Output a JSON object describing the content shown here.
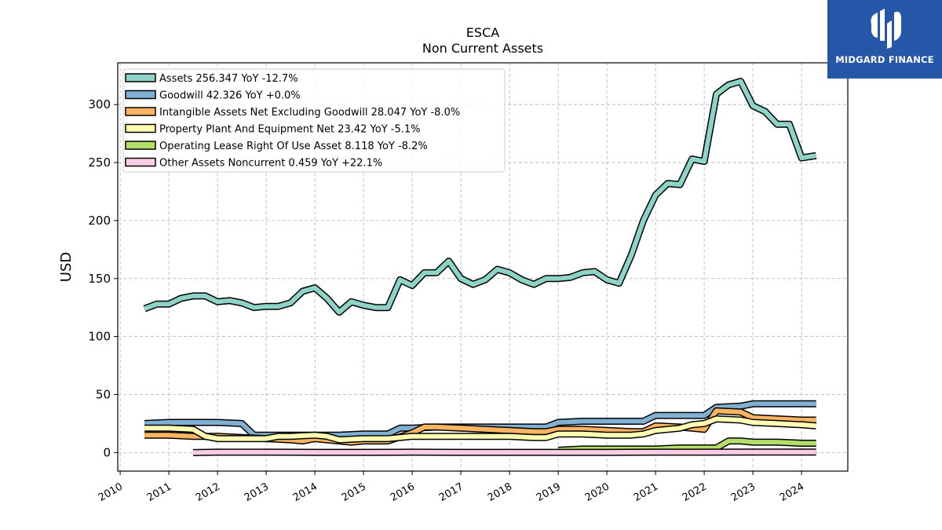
{
  "brand": {
    "name": "MIDGARD FINANCE"
  },
  "chart_data": {
    "type": "area",
    "title": "ESCA",
    "subtitle": "Non Current  Assets",
    "xlabel": "",
    "ylabel": "USD",
    "xlim": [
      2009.95,
      2024.95
    ],
    "ylim": [
      -16,
      336
    ],
    "yticks": [
      0,
      50,
      100,
      150,
      200,
      250,
      300
    ],
    "xticks": [
      2010,
      2011,
      2012,
      2013,
      2014,
      2015,
      2016,
      2017,
      2018,
      2019,
      2020,
      2021,
      2022,
      2023,
      2024
    ],
    "grid": true,
    "legend_position": "top-left",
    "series": [
      {
        "name": "Assets",
        "legend": "Assets  256.347 YoY -12.7%",
        "color": "#8dd3c7",
        "x": [
          2010.5,
          2010.75,
          2011.0,
          2011.25,
          2011.5,
          2011.75,
          2012.0,
          2012.25,
          2012.5,
          2012.75,
          2013.0,
          2013.25,
          2013.5,
          2013.75,
          2014.0,
          2014.25,
          2014.5,
          2014.75,
          2015.0,
          2015.25,
          2015.5,
          2015.75,
          2016.0,
          2016.25,
          2016.5,
          2016.75,
          2017.0,
          2017.25,
          2017.5,
          2017.75,
          2018.0,
          2018.25,
          2018.5,
          2018.75,
          2019.0,
          2019.25,
          2019.5,
          2019.75,
          2020.0,
          2020.25,
          2020.5,
          2020.75,
          2021.0,
          2021.25,
          2021.5,
          2021.75,
          2022.0,
          2022.25,
          2022.5,
          2022.75,
          2023.0,
          2023.25,
          2023.5,
          2023.75,
          2024.0,
          2024.3
        ],
        "y": [
          124,
          128,
          128,
          133,
          135,
          135,
          130,
          131,
          129,
          125,
          126,
          126,
          129,
          139,
          142,
          133,
          121,
          130,
          127,
          125,
          125,
          149,
          144,
          155,
          155,
          165,
          150,
          145,
          149,
          158,
          155,
          149,
          145,
          150,
          150,
          151,
          155,
          156,
          149,
          146,
          170,
          200,
          222,
          232,
          231,
          253,
          251,
          309,
          317,
          320,
          299,
          294,
          283,
          283,
          254,
          256
        ]
      },
      {
        "name": "Goodwill",
        "legend": "Goodwill  42.326 YoY +0.0%",
        "color": "#80b1d3",
        "x": [
          2010.5,
          2011.0,
          2011.5,
          2012.0,
          2012.5,
          2012.75,
          2013.0,
          2013.5,
          2014.0,
          2014.5,
          2015.0,
          2015.5,
          2015.75,
          2016.0,
          2016.5,
          2017.0,
          2017.5,
          2018.0,
          2018.5,
          2018.75,
          2019.0,
          2019.5,
          2020.0,
          2020.5,
          2020.75,
          2021.0,
          2021.5,
          2021.75,
          2022.0,
          2022.25,
          2022.75,
          2023.0,
          2023.5,
          2024.0,
          2024.3
        ],
        "y": [
          25,
          26,
          26,
          26,
          25,
          15,
          15,
          15,
          15,
          15,
          16,
          16,
          21,
          21,
          22,
          22,
          22,
          22,
          22,
          22,
          26,
          27,
          27,
          27,
          27,
          32,
          32,
          32,
          32,
          39,
          40,
          42,
          42,
          42,
          42
        ]
      },
      {
        "name": "Intangible Assets Net Excluding Goodwill",
        "legend": "Intangible Assets Net Excluding Goodwill  28.047 YoY -8.0%",
        "color": "#fdb462",
        "x": [
          2010.5,
          2011.0,
          2011.5,
          2012.0,
          2012.5,
          2013.0,
          2013.5,
          2013.75,
          2014.0,
          2014.5,
          2014.75,
          2015.0,
          2015.5,
          2016.0,
          2016.25,
          2016.5,
          2017.0,
          2017.5,
          2018.0,
          2018.5,
          2018.75,
          2019.0,
          2019.5,
          2020.0,
          2020.5,
          2020.75,
          2021.0,
          2021.5,
          2021.75,
          2022.0,
          2022.25,
          2022.75,
          2023.0,
          2023.5,
          2024.0,
          2024.3
        ],
        "y": [
          15,
          15,
          14,
          14,
          13,
          12,
          11,
          10,
          12,
          10,
          9,
          10,
          10,
          17,
          22,
          22,
          21,
          20,
          19,
          18,
          18,
          20,
          20,
          19,
          18,
          18,
          23,
          22,
          21,
          20,
          36,
          35,
          30,
          29,
          28,
          28
        ]
      },
      {
        "name": "Property Plant And Equipment Net",
        "legend": "Property Plant And Equipment Net  23.42 YoY -5.1%",
        "color": "#ffffb3",
        "x": [
          2010.5,
          2011.0,
          2011.5,
          2011.75,
          2012.0,
          2012.5,
          2013.0,
          2013.25,
          2013.5,
          2014.0,
          2014.25,
          2014.5,
          2015.0,
          2015.5,
          2016.0,
          2016.5,
          2017.0,
          2017.5,
          2018.0,
          2018.5,
          2018.75,
          2019.0,
          2019.5,
          2020.0,
          2020.5,
          2020.75,
          2021.0,
          2021.5,
          2021.75,
          2022.0,
          2022.25,
          2022.75,
          2023.0,
          2023.5,
          2024.0,
          2024.3
        ],
        "y": [
          21,
          21,
          20,
          14,
          12,
          12,
          12,
          14,
          14,
          15,
          14,
          11,
          12,
          12,
          14,
          14,
          14,
          14,
          14,
          13,
          13,
          16,
          16,
          15,
          15,
          16,
          19,
          21,
          24,
          25,
          29,
          28,
          26,
          25,
          24,
          23
        ]
      },
      {
        "name": "Operating Lease Right Of Use Asset",
        "legend": "Operating Lease Right Of Use Asset  8.118 YoY -8.2%",
        "color": "#b3de69",
        "x": [
          2019.0,
          2019.5,
          2020.0,
          2020.5,
          2021.0,
          2021.5,
          2022.0,
          2022.25,
          2022.5,
          2022.75,
          2023.0,
          2023.5,
          2024.0,
          2024.3
        ],
        "y": [
          2,
          3,
          3,
          3,
          3,
          4,
          4,
          4,
          10,
          10,
          9,
          9,
          8,
          8
        ]
      },
      {
        "name": "Other Assets Noncurrent",
        "legend": "Other Assets Noncurrent  0.459 YoY +22.1%",
        "color": "#fccde5",
        "x": [
          2011.5,
          2012.0,
          2013.0,
          2014.0,
          2015.0,
          2016.0,
          2017.0,
          2018.0,
          2019.0,
          2020.0,
          2021.0,
          2022.0,
          2023.0,
          2024.0,
          2024.3
        ],
        "y": [
          0,
          0.3,
          0.3,
          0.2,
          0.2,
          0.3,
          0.2,
          0.2,
          0.2,
          0.2,
          0.3,
          0.3,
          0.4,
          0.4,
          0.46
        ]
      }
    ]
  }
}
